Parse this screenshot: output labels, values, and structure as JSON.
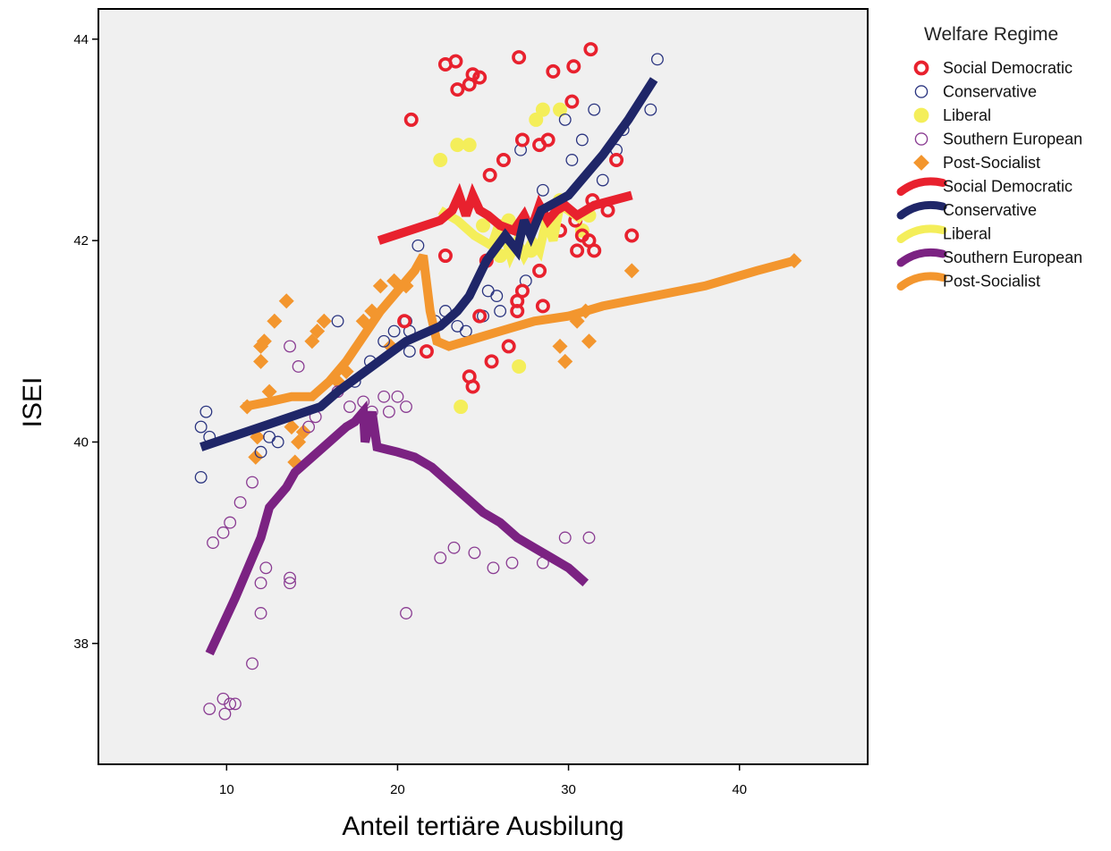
{
  "chart_data": {
    "type": "scatter",
    "xlabel": "Anteil tertiäre Ausbilung",
    "ylabel": "ISEI",
    "xlim": [
      2.5,
      47.5
    ],
    "ylim": [
      36.8,
      44.3
    ],
    "x_ticks": [
      10,
      20,
      30,
      40
    ],
    "y_ticks": [
      38,
      40,
      42,
      44
    ],
    "grid": false,
    "legend": {
      "title": "Welfare Regime",
      "placement": "right",
      "entries": [
        {
          "label": "Social Democratic",
          "kind": "point",
          "series": "Social Democratic"
        },
        {
          "label": "Conservative",
          "kind": "point",
          "series": "Conservative"
        },
        {
          "label": "Liberal",
          "kind": "point",
          "series": "Liberal"
        },
        {
          "label": "Southern European",
          "kind": "point",
          "series": "Southern European"
        },
        {
          "label": "Post-Socialist",
          "kind": "point",
          "series": "Post-Socialist"
        },
        {
          "label": "Social Democratic",
          "kind": "line",
          "series": "Social Democratic"
        },
        {
          "label": "Conservative",
          "kind": "line",
          "series": "Conservative"
        },
        {
          "label": "Liberal",
          "kind": "line",
          "series": "Liberal"
        },
        {
          "label": "Southern European",
          "kind": "line",
          "series": "Southern European"
        },
        {
          "label": "Post-Socialist",
          "kind": "line",
          "series": "Post-Socialist"
        }
      ]
    },
    "series": [
      {
        "name": "Social Democratic",
        "color": "#e8212e",
        "marker": "thick-ring",
        "points": [
          [
            20.8,
            43.2
          ],
          [
            22.8,
            43.75
          ],
          [
            23.4,
            43.78
          ],
          [
            23.5,
            43.5
          ],
          [
            24.2,
            43.55
          ],
          [
            24.4,
            43.65
          ],
          [
            24.8,
            43.62
          ],
          [
            27.1,
            43.82
          ],
          [
            29.1,
            43.68
          ],
          [
            30.3,
            43.73
          ],
          [
            31.3,
            43.9
          ],
          [
            30.2,
            43.38
          ],
          [
            28.8,
            43.0
          ],
          [
            28.3,
            42.95
          ],
          [
            27.3,
            43.0
          ],
          [
            26.2,
            42.8
          ],
          [
            25.4,
            42.65
          ],
          [
            32.8,
            42.8
          ],
          [
            29.5,
            42.1
          ],
          [
            30.5,
            41.9
          ],
          [
            31.5,
            41.9
          ],
          [
            31.2,
            42.0
          ],
          [
            33.7,
            42.05
          ],
          [
            32.3,
            42.3
          ],
          [
            25.2,
            41.8
          ],
          [
            28.3,
            41.7
          ],
          [
            27.0,
            41.4
          ],
          [
            27.3,
            41.5
          ],
          [
            28.5,
            41.35
          ],
          [
            27.0,
            41.3
          ],
          [
            26.5,
            40.95
          ],
          [
            24.2,
            40.65
          ],
          [
            24.4,
            40.55
          ],
          [
            25.5,
            40.8
          ],
          [
            24.8,
            41.25
          ],
          [
            22.8,
            41.85
          ],
          [
            21.7,
            40.9
          ],
          [
            20.4,
            41.2
          ],
          [
            30.4,
            42.2
          ],
          [
            31.4,
            42.4
          ],
          [
            30.8,
            42.05
          ]
        ]
      },
      {
        "name": "Conservative",
        "color": "#2b3580",
        "marker": "ring",
        "points": [
          [
            8.5,
            40.15
          ],
          [
            8.8,
            40.3
          ],
          [
            9.0,
            40.05
          ],
          [
            8.5,
            39.65
          ],
          [
            12.0,
            39.9
          ],
          [
            12.5,
            40.05
          ],
          [
            13.0,
            40.0
          ],
          [
            16.5,
            41.2
          ],
          [
            17.5,
            40.6
          ],
          [
            18.4,
            40.8
          ],
          [
            19.2,
            41.0
          ],
          [
            19.8,
            41.1
          ],
          [
            20.5,
            41.2
          ],
          [
            20.7,
            40.9
          ],
          [
            21.2,
            41.95
          ],
          [
            22.2,
            41.2
          ],
          [
            22.8,
            41.3
          ],
          [
            23.5,
            41.15
          ],
          [
            24.0,
            41.1
          ],
          [
            25.3,
            41.5
          ],
          [
            25.8,
            41.45
          ],
          [
            26.0,
            41.3
          ],
          [
            27.5,
            41.6
          ],
          [
            27.2,
            42.9
          ],
          [
            28.5,
            42.5
          ],
          [
            29.8,
            43.2
          ],
          [
            30.2,
            42.8
          ],
          [
            30.8,
            43.0
          ],
          [
            31.5,
            43.3
          ],
          [
            32.0,
            42.6
          ],
          [
            32.8,
            42.9
          ],
          [
            33.2,
            43.1
          ],
          [
            34.8,
            43.3
          ],
          [
            35.2,
            43.8
          ],
          [
            20.7,
            41.1
          ],
          [
            25.0,
            41.25
          ]
        ]
      },
      {
        "name": "Liberal",
        "color": "#f4ee5a",
        "marker": "dot",
        "points": [
          [
            22.5,
            42.8
          ],
          [
            23.5,
            42.95
          ],
          [
            24.2,
            42.95
          ],
          [
            28.1,
            43.2
          ],
          [
            28.5,
            43.3
          ],
          [
            29.5,
            43.3
          ],
          [
            23.7,
            40.35
          ],
          [
            27.1,
            40.75
          ],
          [
            30.8,
            42.1
          ],
          [
            31.2,
            42.25
          ],
          [
            29.5,
            42.4
          ],
          [
            26.5,
            42.2
          ],
          [
            26.0,
            41.85
          ],
          [
            27.8,
            41.9
          ],
          [
            25.0,
            42.15
          ]
        ]
      },
      {
        "name": "Southern European",
        "color": "#8a3c92",
        "marker": "ring",
        "points": [
          [
            9.0,
            37.35
          ],
          [
            9.8,
            37.45
          ],
          [
            9.9,
            37.3
          ],
          [
            10.2,
            37.4
          ],
          [
            10.5,
            37.4
          ],
          [
            9.2,
            39.0
          ],
          [
            9.8,
            39.1
          ],
          [
            10.2,
            39.2
          ],
          [
            10.8,
            39.4
          ],
          [
            11.5,
            39.6
          ],
          [
            11.5,
            37.8
          ],
          [
            12.0,
            38.3
          ],
          [
            12.0,
            38.6
          ],
          [
            12.3,
            38.75
          ],
          [
            13.7,
            38.6
          ],
          [
            13.7,
            38.65
          ],
          [
            13.7,
            40.95
          ],
          [
            14.2,
            40.75
          ],
          [
            14.8,
            40.15
          ],
          [
            15.2,
            40.25
          ],
          [
            16.5,
            40.5
          ],
          [
            17.2,
            40.35
          ],
          [
            18.0,
            40.4
          ],
          [
            18.5,
            40.3
          ],
          [
            19.2,
            40.45
          ],
          [
            19.5,
            40.3
          ],
          [
            20.0,
            40.45
          ],
          [
            20.5,
            40.35
          ],
          [
            20.5,
            38.3
          ],
          [
            22.5,
            38.85
          ],
          [
            23.3,
            38.95
          ],
          [
            24.5,
            38.9
          ],
          [
            25.6,
            38.75
          ],
          [
            26.7,
            38.8
          ],
          [
            28.5,
            38.8
          ],
          [
            29.8,
            39.05
          ],
          [
            31.2,
            39.05
          ]
        ]
      },
      {
        "name": "Post-Socialist",
        "color": "#f3962e",
        "marker": "diamond",
        "points": [
          [
            11.2,
            40.35
          ],
          [
            11.8,
            40.05
          ],
          [
            11.7,
            39.85
          ],
          [
            12.0,
            40.8
          ],
          [
            12.0,
            40.95
          ],
          [
            12.2,
            41.0
          ],
          [
            12.5,
            40.5
          ],
          [
            12.8,
            41.2
          ],
          [
            13.5,
            41.4
          ],
          [
            13.8,
            40.15
          ],
          [
            14.0,
            39.8
          ],
          [
            14.2,
            40.0
          ],
          [
            14.5,
            40.1
          ],
          [
            15.0,
            41.0
          ],
          [
            15.3,
            41.1
          ],
          [
            15.7,
            41.2
          ],
          [
            16.5,
            40.6
          ],
          [
            17.0,
            40.7
          ],
          [
            18.0,
            41.2
          ],
          [
            18.5,
            41.3
          ],
          [
            19.0,
            41.55
          ],
          [
            19.8,
            41.6
          ],
          [
            19.6,
            40.95
          ],
          [
            20.5,
            41.55
          ],
          [
            29.5,
            40.95
          ],
          [
            30.5,
            41.2
          ],
          [
            31.0,
            41.3
          ],
          [
            31.2,
            41.0
          ],
          [
            29.8,
            40.8
          ],
          [
            33.7,
            41.7
          ],
          [
            43.2,
            41.8
          ]
        ]
      }
    ],
    "fit_lines": [
      {
        "name": "Social Democratic",
        "color": "#e8212e",
        "points": [
          [
            18.9,
            42.0
          ],
          [
            22.5,
            42.2
          ],
          [
            23.2,
            42.3
          ],
          [
            23.6,
            42.45
          ],
          [
            24.0,
            42.25
          ],
          [
            24.4,
            42.45
          ],
          [
            24.8,
            42.3
          ],
          [
            25.3,
            42.25
          ],
          [
            26.0,
            42.15
          ],
          [
            26.8,
            42.1
          ],
          [
            27.4,
            42.25
          ],
          [
            27.8,
            42.1
          ],
          [
            28.3,
            42.35
          ],
          [
            28.8,
            42.2
          ],
          [
            29.3,
            42.3
          ],
          [
            29.8,
            42.35
          ],
          [
            30.5,
            42.25
          ],
          [
            31.5,
            42.35
          ],
          [
            33.7,
            42.45
          ]
        ]
      },
      {
        "name": "Conservative",
        "color": "#1f2668",
        "points": [
          [
            8.5,
            39.95
          ],
          [
            12.0,
            40.15
          ],
          [
            15.5,
            40.35
          ],
          [
            16.5,
            40.5
          ],
          [
            18.5,
            40.75
          ],
          [
            20.5,
            41.0
          ],
          [
            22.5,
            41.15
          ],
          [
            23.5,
            41.3
          ],
          [
            24.2,
            41.45
          ],
          [
            25.2,
            41.8
          ],
          [
            26.3,
            42.05
          ],
          [
            27.0,
            41.9
          ],
          [
            27.4,
            42.2
          ],
          [
            27.8,
            42.05
          ],
          [
            28.4,
            42.3
          ],
          [
            30.0,
            42.45
          ],
          [
            32.0,
            42.85
          ],
          [
            33.5,
            43.2
          ],
          [
            35.0,
            43.6
          ]
        ]
      },
      {
        "name": "Liberal",
        "color": "#f4ee5a",
        "points": [
          [
            22.5,
            42.3
          ],
          [
            23.5,
            42.2
          ],
          [
            24.5,
            42.05
          ],
          [
            25.5,
            41.95
          ],
          [
            26.0,
            42.2
          ],
          [
            26.6,
            41.85
          ],
          [
            27.0,
            42.0
          ],
          [
            27.4,
            41.85
          ],
          [
            27.9,
            42.0
          ],
          [
            28.3,
            41.9
          ],
          [
            28.7,
            42.2
          ],
          [
            29.1,
            42.0
          ],
          [
            29.5,
            42.35
          ],
          [
            30.0,
            42.3
          ],
          [
            30.8,
            42.2
          ]
        ]
      },
      {
        "name": "Southern European",
        "color": "#7b2282",
        "points": [
          [
            9.0,
            37.9
          ],
          [
            10.5,
            38.45
          ],
          [
            12.0,
            39.05
          ],
          [
            12.5,
            39.35
          ],
          [
            13.5,
            39.55
          ],
          [
            14.0,
            39.7
          ],
          [
            15.0,
            39.85
          ],
          [
            16.0,
            40.0
          ],
          [
            17.0,
            40.15
          ],
          [
            17.5,
            40.2
          ],
          [
            18.0,
            40.3
          ],
          [
            18.1,
            40.0
          ],
          [
            18.5,
            40.3
          ],
          [
            18.8,
            39.95
          ],
          [
            20.0,
            39.9
          ],
          [
            21.0,
            39.85
          ],
          [
            22.0,
            39.75
          ],
          [
            23.0,
            39.6
          ],
          [
            24.0,
            39.45
          ],
          [
            25.0,
            39.3
          ],
          [
            26.0,
            39.2
          ],
          [
            27.0,
            39.05
          ],
          [
            28.0,
            38.95
          ],
          [
            29.0,
            38.85
          ],
          [
            30.0,
            38.75
          ],
          [
            31.0,
            38.6
          ]
        ]
      },
      {
        "name": "Post-Socialist",
        "color": "#f3962e",
        "points": [
          [
            11.0,
            40.35
          ],
          [
            12.5,
            40.4
          ],
          [
            13.8,
            40.45
          ],
          [
            15.0,
            40.45
          ],
          [
            16.0,
            40.6
          ],
          [
            17.0,
            40.8
          ],
          [
            18.0,
            41.05
          ],
          [
            19.0,
            41.3
          ],
          [
            20.0,
            41.5
          ],
          [
            21.0,
            41.7
          ],
          [
            21.5,
            41.85
          ],
          [
            21.9,
            41.3
          ],
          [
            22.3,
            41.0
          ],
          [
            23.0,
            40.95
          ],
          [
            24.0,
            41.0
          ],
          [
            25.0,
            41.05
          ],
          [
            26.0,
            41.1
          ],
          [
            28.0,
            41.2
          ],
          [
            30.0,
            41.25
          ],
          [
            32.0,
            41.35
          ],
          [
            35.0,
            41.45
          ],
          [
            38.0,
            41.55
          ],
          [
            41.0,
            41.7
          ],
          [
            43.2,
            41.8
          ]
        ]
      }
    ]
  }
}
